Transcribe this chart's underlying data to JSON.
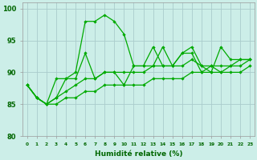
{
  "xlabel": "Humidité relative (%)",
  "background_color": "#cceee8",
  "grid_color": "#aacccc",
  "line_color": "#00aa00",
  "xlim": [
    -0.5,
    23.5
  ],
  "ylim": [
    80,
    101
  ],
  "yticks": [
    80,
    85,
    90,
    95,
    100
  ],
  "xtick_labels": [
    "0",
    "1",
    "2",
    "3",
    "4",
    "5",
    "6",
    "7",
    "8",
    "9",
    "10",
    "11",
    "12",
    "13",
    "14",
    "15",
    "16",
    "17",
    "18",
    "19",
    "20",
    "21",
    "22",
    "23"
  ],
  "series": [
    [
      88,
      86,
      85,
      89,
      89,
      90,
      98,
      98,
      99,
      98,
      96,
      91,
      91,
      94,
      91,
      91,
      93,
      94,
      91,
      90,
      94,
      92,
      92,
      92
    ],
    [
      88,
      86,
      85,
      86,
      89,
      89,
      93,
      89,
      90,
      90,
      88,
      91,
      91,
      91,
      94,
      91,
      93,
      93,
      90,
      91,
      90,
      91,
      91,
      92
    ],
    [
      88,
      86,
      85,
      86,
      87,
      88,
      89,
      89,
      90,
      90,
      90,
      90,
      90,
      91,
      91,
      91,
      91,
      92,
      91,
      91,
      91,
      91,
      92,
      92
    ],
    [
      88,
      86,
      85,
      85,
      86,
      86,
      87,
      87,
      88,
      88,
      88,
      88,
      88,
      89,
      89,
      89,
      89,
      90,
      90,
      90,
      90,
      90,
      90,
      91
    ]
  ]
}
